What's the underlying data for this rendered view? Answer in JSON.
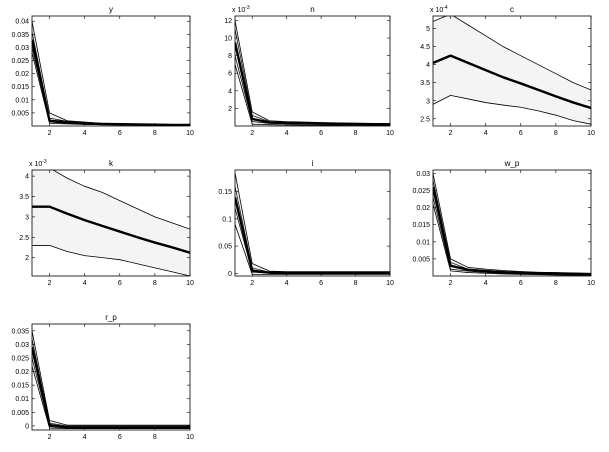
{
  "figure": {
    "background": "#ffffff",
    "band_fill": "#f4f4f4",
    "line_color": "#000000"
  },
  "chart_data": [
    {
      "type": "line",
      "title": "y",
      "x": [
        1,
        2,
        3,
        4,
        5,
        6,
        7,
        8,
        9,
        10
      ],
      "xlim": [
        1,
        10
      ],
      "ylim": [
        0,
        0.042
      ],
      "xticks": [
        2,
        4,
        6,
        8,
        10
      ],
      "yticks": [
        0.005,
        0.01,
        0.015,
        0.02,
        0.025,
        0.03,
        0.035,
        0.04
      ],
      "ytick_labels": [
        "0.005",
        "0.01",
        "0.015",
        "0.02",
        "0.025",
        "0.03",
        "0.035",
        "0.04"
      ],
      "multiplier": "",
      "median": [
        0.033,
        0.002,
        0.0015,
        0.001,
        0.0008,
        0.0007,
        0.0006,
        0.0005,
        0.0004,
        0.0004
      ],
      "upper": [
        0.04,
        0.005,
        0.002,
        0.0015,
        0.001,
        0.0009,
        0.0008,
        0.0007,
        0.0006,
        0.0006
      ],
      "lower": [
        0.028,
        0.001,
        0.0008,
        0.0006,
        0.0005,
        0.0004,
        0.0003,
        0.0003,
        0.0002,
        0.0002
      ],
      "extra": [
        [
          0.036,
          0.003,
          0.0018,
          0.0012,
          0.0009,
          0.0008,
          0.0007,
          0.0006,
          0.0005,
          0.0005
        ],
        [
          0.03,
          0.0015,
          0.001,
          0.0008,
          0.0006,
          0.0005,
          0.0005,
          0.0004,
          0.0003,
          0.0003
        ]
      ]
    },
    {
      "type": "line",
      "title": "n",
      "x": [
        1,
        2,
        3,
        4,
        5,
        6,
        7,
        8,
        9,
        10
      ],
      "xlim": [
        1,
        10
      ],
      "ylim": [
        0,
        12.5
      ],
      "xticks": [
        2,
        4,
        6,
        8,
        10
      ],
      "yticks": [
        2,
        4,
        6,
        8,
        10,
        12
      ],
      "ytick_labels": [
        "2",
        "4",
        "6",
        "8",
        "10",
        "12"
      ],
      "multiplier": "x 10",
      "multiplier_exp": "-3",
      "median": [
        9.5,
        0.8,
        0.4,
        0.35,
        0.3,
        0.28,
        0.25,
        0.22,
        0.2,
        0.18
      ],
      "upper": [
        12.0,
        1.6,
        0.6,
        0.5,
        0.45,
        0.4,
        0.35,
        0.32,
        0.3,
        0.28
      ],
      "lower": [
        7.0,
        0.2,
        0.15,
        0.12,
        0.1,
        0.08,
        0.07,
        0.06,
        0.05,
        0.05
      ],
      "extra": [
        [
          11.0,
          1.2,
          0.5,
          0.4,
          0.35,
          0.32,
          0.3,
          0.27,
          0.25,
          0.22
        ],
        [
          8.0,
          0.5,
          0.3,
          0.25,
          0.2,
          0.18,
          0.16,
          0.14,
          0.12,
          0.1
        ]
      ]
    },
    {
      "type": "line",
      "title": "c",
      "x": [
        1,
        2,
        3,
        4,
        5,
        6,
        7,
        8,
        9,
        10
      ],
      "xlim": [
        1,
        10
      ],
      "ylim": [
        2.3,
        5.35
      ],
      "xticks": [
        2,
        4,
        6,
        8,
        10
      ],
      "yticks": [
        2.5,
        3,
        3.5,
        4,
        4.5,
        5
      ],
      "ytick_labels": [
        "2.5",
        "3",
        "3.5",
        "4",
        "4.5",
        "5"
      ],
      "multiplier": "x 10",
      "multiplier_exp": "-4",
      "median": [
        4.05,
        4.25,
        4.05,
        3.85,
        3.65,
        3.48,
        3.3,
        3.12,
        2.95,
        2.8
      ],
      "upper": [
        5.2,
        5.4,
        5.1,
        4.8,
        4.5,
        4.25,
        4.0,
        3.75,
        3.5,
        3.3
      ],
      "lower": [
        2.9,
        3.15,
        3.05,
        2.95,
        2.88,
        2.82,
        2.72,
        2.6,
        2.45,
        2.35
      ],
      "extra": []
    },
    {
      "type": "line",
      "title": "k",
      "x": [
        1,
        2,
        3,
        4,
        5,
        6,
        7,
        8,
        9,
        10
      ],
      "xlim": [
        1,
        10
      ],
      "ylim": [
        1.55,
        4.15
      ],
      "xticks": [
        2,
        4,
        6,
        8,
        10
      ],
      "yticks": [
        2,
        2.5,
        3,
        3.5,
        4
      ],
      "ytick_labels": [
        "2",
        "2.5",
        "3",
        "3.5",
        "4"
      ],
      "multiplier": "x 10",
      "multiplier_exp": "-3",
      "median": [
        3.25,
        3.25,
        3.08,
        2.92,
        2.78,
        2.64,
        2.5,
        2.37,
        2.25,
        2.12
      ],
      "upper": [
        4.2,
        4.2,
        3.95,
        3.75,
        3.6,
        3.4,
        3.2,
        3.0,
        2.85,
        2.7
      ],
      "lower": [
        2.3,
        2.3,
        2.15,
        2.05,
        2.0,
        1.95,
        1.85,
        1.75,
        1.65,
        1.55
      ],
      "extra": []
    },
    {
      "type": "line",
      "title": "i",
      "x": [
        1,
        2,
        3,
        4,
        5,
        6,
        7,
        8,
        9,
        10
      ],
      "xlim": [
        1,
        10
      ],
      "ylim": [
        -0.005,
        0.19
      ],
      "xticks": [
        2,
        4,
        6,
        8,
        10
      ],
      "yticks": [
        0,
        0.05,
        0.1,
        0.15
      ],
      "ytick_labels": [
        "0",
        "0.05",
        "0.1",
        "0.15"
      ],
      "multiplier": "",
      "median": [
        0.14,
        0.005,
        0.001,
        0.001,
        0.001,
        0.001,
        0.001,
        0.001,
        0.001,
        0.001
      ],
      "upper": [
        0.185,
        0.018,
        0.004,
        0.003,
        0.003,
        0.003,
        0.003,
        0.003,
        0.003,
        0.003
      ],
      "lower": [
        0.09,
        -0.002,
        -0.002,
        -0.002,
        -0.002,
        -0.002,
        -0.002,
        -0.002,
        -0.002,
        -0.002
      ],
      "extra": [
        [
          0.16,
          0.01,
          0.002,
          0.002,
          0.002,
          0.002,
          0.002,
          0.002,
          0.002,
          0.002
        ],
        [
          0.12,
          0.002,
          0.0,
          0.0,
          0.0,
          0.0,
          0.0,
          0.0,
          0.0,
          0.0
        ]
      ]
    },
    {
      "type": "line",
      "title": "w_p",
      "x": [
        1,
        2,
        3,
        4,
        5,
        6,
        7,
        8,
        9,
        10
      ],
      "xlim": [
        1,
        10
      ],
      "ylim": [
        0,
        0.031
      ],
      "xticks": [
        2,
        4,
        6,
        8,
        10
      ],
      "yticks": [
        0.005,
        0.01,
        0.015,
        0.02,
        0.025,
        0.03
      ],
      "ytick_labels": [
        "0.005",
        "0.01",
        "0.015",
        "0.02",
        "0.025",
        "0.03"
      ],
      "multiplier": "",
      "median": [
        0.026,
        0.003,
        0.0018,
        0.0014,
        0.0011,
        0.0009,
        0.0008,
        0.0007,
        0.0006,
        0.0005
      ],
      "upper": [
        0.03,
        0.005,
        0.0025,
        0.002,
        0.0016,
        0.0013,
        0.0011,
        0.001,
        0.0009,
        0.0008
      ],
      "lower": [
        0.021,
        0.0015,
        0.001,
        0.0008,
        0.0006,
        0.0005,
        0.0004,
        0.0003,
        0.0002,
        0.0002
      ],
      "extra": [
        [
          0.028,
          0.004,
          0.002,
          0.0017,
          0.0013,
          0.0011,
          0.001,
          0.0009,
          0.0008,
          0.0007
        ],
        [
          0.023,
          0.002,
          0.0014,
          0.001,
          0.0008,
          0.0007,
          0.0006,
          0.0005,
          0.0004,
          0.0003
        ]
      ]
    },
    {
      "type": "line",
      "title": "r_p",
      "x": [
        1,
        2,
        3,
        4,
        5,
        6,
        7,
        8,
        9,
        10
      ],
      "xlim": [
        1,
        10
      ],
      "ylim": [
        -0.0015,
        0.0375
      ],
      "xticks": [
        2,
        4,
        6,
        8,
        10
      ],
      "yticks": [
        0,
        0.005,
        0.01,
        0.015,
        0.02,
        0.025,
        0.03,
        0.035
      ],
      "ytick_labels": [
        "0",
        "0.005",
        "0.01",
        "0.015",
        "0.02",
        "0.025",
        "0.03",
        "0.035"
      ],
      "multiplier": "",
      "median": [
        0.029,
        0.0003,
        -0.0005,
        -0.0005,
        -0.0005,
        -0.0005,
        -0.0005,
        -0.0005,
        -0.0005,
        -0.0005
      ],
      "upper": [
        0.035,
        0.002,
        0.0003,
        0.0003,
        0.0003,
        0.0003,
        0.0003,
        0.0003,
        0.0003,
        0.0003
      ],
      "lower": [
        0.022,
        -0.0008,
        -0.001,
        -0.001,
        -0.001,
        -0.001,
        -0.001,
        -0.001,
        -0.001,
        -0.001
      ],
      "extra": [
        [
          0.032,
          0.001,
          0.0,
          0.0,
          0.0,
          0.0,
          0.0,
          0.0,
          0.0,
          0.0
        ],
        [
          0.025,
          -0.0003,
          -0.0008,
          -0.0008,
          -0.0008,
          -0.0008,
          -0.0008,
          -0.0008,
          -0.0008,
          -0.0008
        ]
      ]
    }
  ]
}
